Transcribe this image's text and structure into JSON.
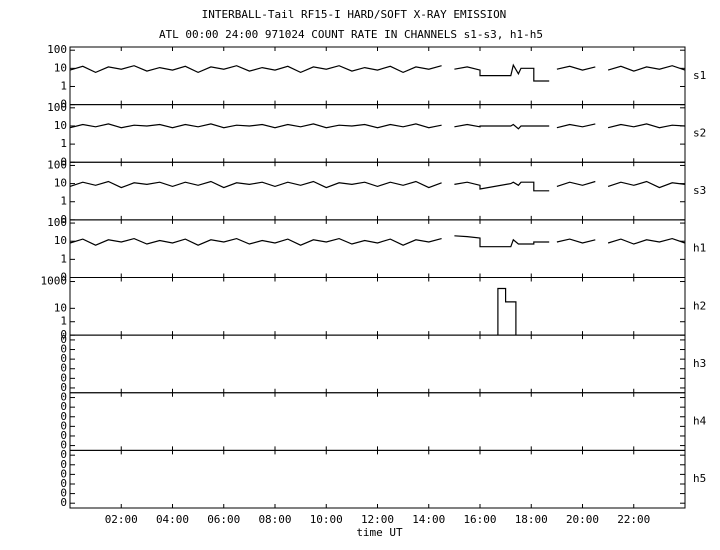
{
  "header": {
    "title": "INTERBALL-Tail RF15-I HARD/SOFT X-RAY EMISSION",
    "subtitle": "ATL 00:00 24:00 971024  COUNT RATE IN CHANNELS s1-s3, h1-h5"
  },
  "chart_data": [
    {
      "type": "line",
      "label": "s1",
      "ylog": true,
      "ylim": [
        0.1,
        150
      ],
      "yticks": [
        100,
        10,
        1,
        {
          "value": 0.1,
          "label": "0"
        }
      ],
      "x": [
        0,
        0.5,
        1,
        1.5,
        2,
        2.5,
        3,
        3.5,
        4,
        4.5,
        5,
        5.5,
        6,
        6.5,
        7,
        7.5,
        8,
        8.5,
        9,
        9.5,
        10,
        10.5,
        11,
        11.5,
        12,
        12.5,
        13,
        13.5,
        14,
        14.5,
        14.9,
        15.0,
        15.5,
        16,
        16,
        17.2,
        17.3,
        17.5,
        17.6,
        18.1,
        18.1,
        18.7,
        18.8,
        19,
        19.5,
        20,
        20.5,
        20.7,
        21,
        21.5,
        22,
        22.5,
        23,
        23.5,
        24
      ],
      "values": [
        8,
        13,
        6,
        12,
        9,
        14,
        7,
        11,
        8,
        13,
        6,
        12,
        9,
        14,
        7,
        11,
        8,
        13,
        6,
        12,
        9,
        14,
        7,
        11,
        8,
        13,
        6,
        12,
        9,
        14,
        null,
        9,
        12,
        8,
        4,
        4,
        15,
        5,
        10,
        10,
        2,
        2,
        null,
        9,
        13,
        8,
        12,
        null,
        8,
        13,
        7,
        12,
        9,
        14,
        8
      ],
      "color": "#000"
    },
    {
      "type": "line",
      "label": "s2",
      "ylog": true,
      "ylim": [
        0.1,
        150
      ],
      "yticks": [
        100,
        10,
        1,
        {
          "value": 0.1,
          "label": "0"
        }
      ],
      "x": [
        0,
        0.5,
        1,
        1.5,
        2,
        2.5,
        3,
        3.5,
        4,
        4.5,
        5,
        5.5,
        6,
        6.5,
        7,
        7.5,
        8,
        8.5,
        9,
        9.5,
        10,
        10.5,
        11,
        11.5,
        12,
        12.5,
        13,
        13.5,
        14,
        14.5,
        14.9,
        15.0,
        15.5,
        16,
        16,
        17.2,
        17.3,
        17.5,
        17.6,
        18.1,
        18.1,
        18.7,
        18.8,
        19,
        19.5,
        20,
        20.5,
        20.7,
        21,
        21.5,
        22,
        22.5,
        23,
        23.5,
        24
      ],
      "values": [
        8,
        12,
        9,
        13,
        8,
        11,
        10,
        12,
        8,
        12,
        9,
        13,
        8,
        11,
        10,
        12,
        8,
        12,
        9,
        13,
        8,
        11,
        10,
        12,
        8,
        12,
        9,
        13,
        8,
        11,
        null,
        9,
        12,
        9,
        10,
        10,
        12,
        7,
        10,
        10,
        10,
        10,
        null,
        8,
        12,
        9,
        13,
        null,
        8,
        12,
        9,
        13,
        8,
        11,
        10
      ],
      "color": "#000"
    },
    {
      "type": "line",
      "label": "s3",
      "ylog": true,
      "ylim": [
        0.1,
        150
      ],
      "yticks": [
        100,
        10,
        1,
        {
          "value": 0.1,
          "label": "0"
        }
      ],
      "x": [
        0,
        0.5,
        1,
        1.5,
        2,
        2.5,
        3,
        3.5,
        4,
        4.5,
        5,
        5.5,
        6,
        6.5,
        7,
        7.5,
        8,
        8.5,
        9,
        9.5,
        10,
        10.5,
        11,
        11.5,
        12,
        12.5,
        13,
        13.5,
        14,
        14.5,
        14.9,
        15.0,
        15.5,
        16,
        16,
        17.2,
        17.3,
        17.5,
        17.6,
        18.1,
        18.1,
        18.7,
        18.8,
        19,
        19.5,
        20,
        20.5,
        20.7,
        21,
        21.5,
        22,
        22.5,
        23,
        23.5,
        24
      ],
      "values": [
        7,
        12,
        8,
        13,
        6,
        11,
        9,
        12,
        7,
        12,
        8,
        13,
        6,
        11,
        9,
        12,
        7,
        12,
        8,
        13,
        6,
        11,
        9,
        12,
        7,
        12,
        8,
        13,
        6,
        11,
        null,
        9,
        12,
        8,
        5,
        10,
        12,
        8,
        12,
        12,
        4,
        4,
        null,
        7,
        12,
        8,
        13,
        null,
        7,
        12,
        8,
        13,
        6,
        11,
        9
      ],
      "color": "#000"
    },
    {
      "type": "line",
      "label": "h1",
      "ylog": true,
      "ylim": [
        0.1,
        150
      ],
      "yticks": [
        100,
        10,
        1,
        {
          "value": 0.1,
          "label": "0"
        }
      ],
      "x": [
        0,
        0.5,
        1,
        1.5,
        2,
        2.5,
        3,
        3.5,
        4,
        4.5,
        5,
        5.5,
        6,
        6.5,
        7,
        7.5,
        8,
        8.5,
        9,
        9.5,
        10,
        10.5,
        11,
        11.5,
        12,
        12.5,
        13,
        13.5,
        14,
        14.5,
        14.9,
        15.0,
        15.5,
        16,
        16,
        17.2,
        17.3,
        17.5,
        17.6,
        18.1,
        18.1,
        18.7,
        18.8,
        19,
        19.5,
        20,
        20.5,
        20.7,
        21,
        21.5,
        22,
        22.5,
        23,
        23.5,
        24
      ],
      "values": [
        8,
        13,
        6,
        12,
        9,
        14,
        7,
        11,
        8,
        13,
        6,
        12,
        9,
        14,
        7,
        11,
        8,
        13,
        6,
        12,
        9,
        14,
        7,
        11,
        8,
        13,
        6,
        12,
        9,
        14,
        null,
        20,
        18,
        15,
        5,
        5,
        12,
        7,
        7,
        7,
        9,
        9,
        null,
        9,
        13,
        8,
        12,
        null,
        8,
        13,
        7,
        12,
        9,
        14,
        8
      ],
      "color": "#000"
    },
    {
      "type": "line",
      "label": "h2",
      "ylog": true,
      "ylim": [
        0.1,
        2000
      ],
      "yticks": [
        1000,
        10,
        1,
        {
          "value": 0.1,
          "label": "0"
        }
      ],
      "x": [
        16.7,
        16.7,
        17.0,
        17.0,
        17.4,
        17.4
      ],
      "values": [
        0.1,
        300,
        300,
        30,
        30,
        0.1
      ],
      "color": "#000"
    },
    {
      "type": "line",
      "label": "h3",
      "ylim": [
        -0.5,
        5.5
      ],
      "yticks": [
        {
          "value": 0,
          "label": "0"
        },
        {
          "value": 1,
          "label": "0"
        },
        {
          "value": 2,
          "label": "0"
        },
        {
          "value": 3,
          "label": "0"
        },
        {
          "value": 4,
          "label": "0"
        },
        {
          "value": 5,
          "label": "0"
        }
      ]
    },
    {
      "type": "line",
      "label": "h4",
      "ylim": [
        -0.5,
        5.5
      ],
      "yticks": [
        {
          "value": 0,
          "label": "0"
        },
        {
          "value": 1,
          "label": "0"
        },
        {
          "value": 2,
          "label": "0"
        },
        {
          "value": 3,
          "label": "0"
        },
        {
          "value": 4,
          "label": "0"
        },
        {
          "value": 5,
          "label": "0"
        }
      ]
    },
    {
      "type": "line",
      "label": "h5",
      "ylim": [
        -0.5,
        5.5
      ],
      "yticks": [
        {
          "value": 0,
          "label": "0"
        },
        {
          "value": 1,
          "label": "0"
        },
        {
          "value": 2,
          "label": "0"
        },
        {
          "value": 3,
          "label": "0"
        },
        {
          "value": 4,
          "label": "0"
        },
        {
          "value": 5,
          "label": "0"
        }
      ],
      "xlabel": "time UT",
      "xlim": [
        0,
        24
      ],
      "xticks": [
        {
          "value": 2,
          "label": "02:00"
        },
        {
          "value": 4,
          "label": "04:00"
        },
        {
          "value": 6,
          "label": "06:00"
        },
        {
          "value": 8,
          "label": "08:00"
        },
        {
          "value": 10,
          "label": "10:00"
        },
        {
          "value": 12,
          "label": "12:00"
        },
        {
          "value": 14,
          "label": "14:00"
        },
        {
          "value": 16,
          "label": "16:00"
        },
        {
          "value": 18,
          "label": "18:00"
        },
        {
          "value": 20,
          "label": "20:00"
        },
        {
          "value": 22,
          "label": "22:00"
        }
      ]
    }
  ]
}
